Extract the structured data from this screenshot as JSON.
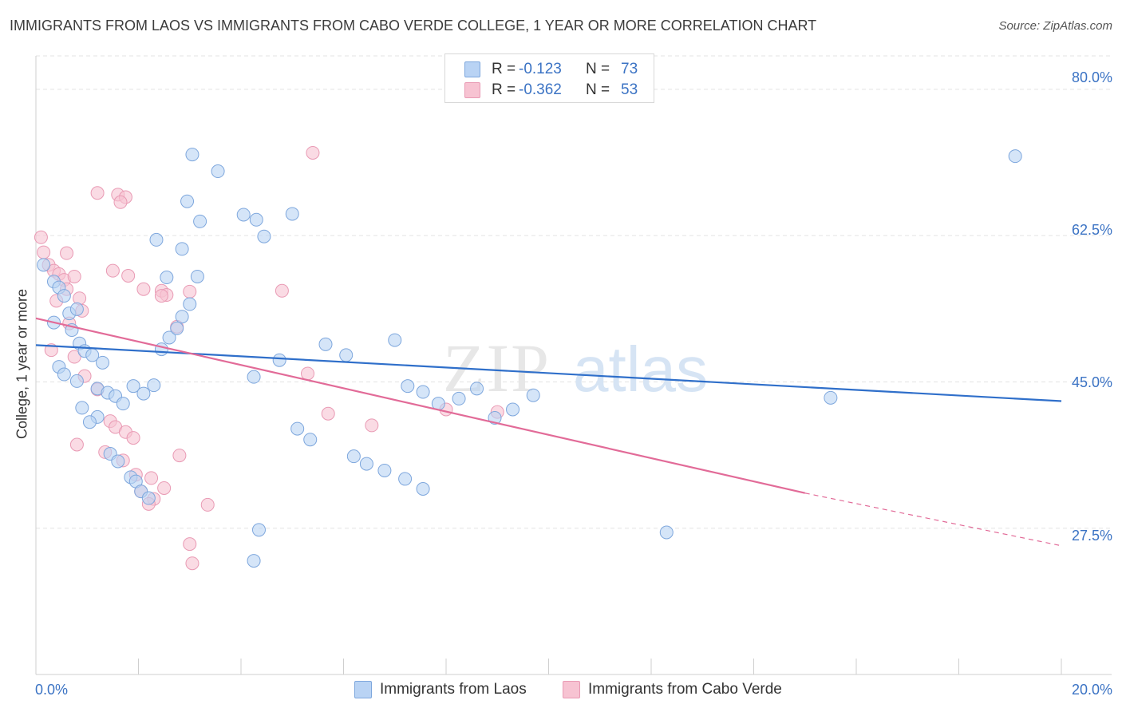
{
  "title": "IMMIGRANTS FROM LAOS VS IMMIGRANTS FROM CABO VERDE COLLEGE, 1 YEAR OR MORE CORRELATION CHART",
  "source": "Source: ZipAtlas.com",
  "watermark": {
    "part1": "ZIP",
    "part2": "atlas"
  },
  "legend": {
    "laos": {
      "r_label": "R =",
      "r_value": "-0.123",
      "n_label": "N =",
      "n_value": "73"
    },
    "cabo": {
      "r_label": "R =",
      "r_value": "-0.362",
      "n_label": "N =",
      "n_value": "53"
    }
  },
  "colors": {
    "laos_fill": "#b9d3f4",
    "laos_stroke": "#7ea7dd",
    "laos_line": "#2f6fca",
    "cabo_fill": "#f7c3d2",
    "cabo_stroke": "#e99ab4",
    "cabo_line": "#e26b98",
    "tick_text": "#3b73c4",
    "grid": "#e3e3e3"
  },
  "chart_data": {
    "type": "scatter",
    "title": "IMMIGRANTS FROM LAOS VS IMMIGRANTS FROM CABO VERDE COLLEGE, 1 YEAR OR MORE CORRELATION CHART",
    "xlabel": "",
    "ylabel": "College, 1 year or more",
    "xlim": [
      0,
      20
    ],
    "ylim": [
      10,
      84
    ],
    "x_tick_labels": [
      "0.0%",
      "20.0%"
    ],
    "y_ticks": [
      27.5,
      45.0,
      62.5,
      80.0
    ],
    "y_tick_labels": [
      "27.5%",
      "45.0%",
      "62.5%",
      "80.0%"
    ],
    "legend_position": "top-center",
    "series": [
      {
        "name": "Immigrants from Laos",
        "color": "#b9d3f4",
        "trend": {
          "x": [
            0.0,
            20.0
          ],
          "y": [
            49.4,
            42.7
          ]
        },
        "points": [
          [
            0.15,
            59.0
          ],
          [
            0.35,
            57.0
          ],
          [
            0.45,
            56.3
          ],
          [
            0.55,
            55.3
          ],
          [
            0.65,
            53.2
          ],
          [
            0.8,
            53.7
          ],
          [
            0.35,
            52.1
          ],
          [
            0.7,
            51.2
          ],
          [
            0.85,
            49.6
          ],
          [
            0.95,
            48.7
          ],
          [
            1.1,
            48.2
          ],
          [
            1.3,
            47.3
          ],
          [
            0.45,
            46.8
          ],
          [
            0.55,
            45.9
          ],
          [
            0.8,
            45.1
          ],
          [
            1.2,
            44.2
          ],
          [
            1.4,
            43.7
          ],
          [
            1.55,
            43.3
          ],
          [
            1.7,
            42.4
          ],
          [
            0.9,
            41.9
          ],
          [
            1.2,
            40.8
          ],
          [
            1.05,
            40.2
          ],
          [
            1.45,
            36.4
          ],
          [
            1.6,
            35.5
          ],
          [
            1.85,
            33.6
          ],
          [
            1.95,
            33.1
          ],
          [
            2.05,
            31.9
          ],
          [
            2.2,
            31.1
          ],
          [
            1.9,
            44.5
          ],
          [
            2.1,
            43.6
          ],
          [
            2.3,
            44.6
          ],
          [
            2.45,
            48.9
          ],
          [
            2.6,
            50.3
          ],
          [
            2.75,
            51.4
          ],
          [
            2.85,
            52.8
          ],
          [
            3.0,
            54.3
          ],
          [
            3.15,
            57.6
          ],
          [
            2.55,
            57.5
          ],
          [
            2.85,
            60.9
          ],
          [
            2.95,
            66.6
          ],
          [
            2.35,
            62.0
          ],
          [
            3.05,
            72.2
          ],
          [
            3.2,
            64.2
          ],
          [
            3.55,
            70.2
          ],
          [
            4.05,
            65.0
          ],
          [
            4.3,
            64.4
          ],
          [
            4.45,
            62.4
          ],
          [
            5.0,
            65.1
          ],
          [
            4.25,
            45.6
          ],
          [
            4.75,
            47.6
          ],
          [
            5.65,
            49.5
          ],
          [
            6.05,
            48.2
          ],
          [
            7.0,
            50.0
          ],
          [
            7.25,
            44.5
          ],
          [
            7.55,
            43.8
          ],
          [
            7.85,
            42.4
          ],
          [
            8.25,
            43.0
          ],
          [
            8.6,
            44.2
          ],
          [
            8.95,
            40.7
          ],
          [
            9.3,
            41.7
          ],
          [
            9.7,
            43.4
          ],
          [
            5.1,
            39.4
          ],
          [
            5.35,
            38.1
          ],
          [
            6.2,
            36.1
          ],
          [
            6.45,
            35.2
          ],
          [
            6.8,
            34.4
          ],
          [
            7.2,
            33.4
          ],
          [
            7.55,
            32.2
          ],
          [
            4.35,
            27.3
          ],
          [
            4.25,
            23.6
          ],
          [
            12.3,
            27.0
          ],
          [
            15.5,
            43.1
          ],
          [
            19.1,
            72.0
          ]
        ]
      },
      {
        "name": "Immigrants from Cabo Verde",
        "color": "#f7c3d2",
        "trend": {
          "x": [
            0.0,
            15.0
          ],
          "y": [
            52.6,
            31.7
          ]
        },
        "trend_dashed_extension": {
          "x": [
            15.0,
            20.0
          ],
          "y": [
            31.7,
            25.4
          ]
        },
        "points": [
          [
            0.1,
            62.3
          ],
          [
            0.15,
            60.5
          ],
          [
            0.25,
            59.0
          ],
          [
            0.35,
            58.3
          ],
          [
            0.45,
            57.9
          ],
          [
            0.55,
            57.2
          ],
          [
            0.6,
            56.1
          ],
          [
            0.75,
            57.6
          ],
          [
            0.85,
            55.0
          ],
          [
            0.4,
            54.7
          ],
          [
            0.9,
            53.5
          ],
          [
            0.65,
            52.0
          ],
          [
            0.3,
            48.8
          ],
          [
            0.75,
            48.0
          ],
          [
            0.95,
            45.7
          ],
          [
            1.2,
            44.1
          ],
          [
            0.8,
            37.5
          ],
          [
            1.45,
            40.3
          ],
          [
            1.55,
            39.6
          ],
          [
            1.75,
            39.0
          ],
          [
            1.9,
            38.3
          ],
          [
            1.35,
            36.6
          ],
          [
            1.7,
            35.6
          ],
          [
            1.95,
            33.9
          ],
          [
            2.05,
            31.9
          ],
          [
            2.3,
            31.0
          ],
          [
            2.5,
            32.3
          ],
          [
            2.25,
            33.5
          ],
          [
            2.8,
            36.2
          ],
          [
            2.2,
            30.4
          ],
          [
            0.6,
            60.4
          ],
          [
            1.2,
            67.6
          ],
          [
            1.6,
            67.4
          ],
          [
            1.75,
            67.1
          ],
          [
            1.65,
            66.5
          ],
          [
            1.5,
            58.3
          ],
          [
            1.8,
            57.7
          ],
          [
            2.1,
            56.1
          ],
          [
            2.45,
            55.9
          ],
          [
            2.55,
            55.4
          ],
          [
            2.75,
            51.6
          ],
          [
            3.35,
            30.3
          ],
          [
            3.0,
            25.6
          ],
          [
            3.05,
            23.3
          ],
          [
            2.45,
            55.3
          ],
          [
            3.0,
            55.8
          ],
          [
            4.8,
            55.9
          ],
          [
            5.4,
            72.4
          ],
          [
            5.3,
            46.0
          ],
          [
            5.7,
            41.2
          ],
          [
            6.55,
            39.8
          ],
          [
            8.0,
            41.7
          ],
          [
            9.0,
            41.4
          ]
        ]
      }
    ]
  },
  "bottom_legend": {
    "laos_label": "Immigrants from Laos",
    "cabo_label": "Immigrants from Cabo Verde"
  }
}
